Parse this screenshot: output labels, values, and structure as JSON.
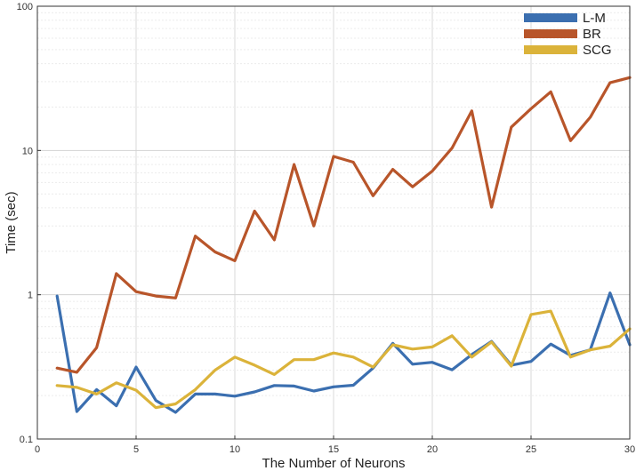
{
  "chart_data": {
    "type": "line",
    "title": "",
    "xlabel": "The Number of Neurons",
    "ylabel": "Time (sec)",
    "xlim": [
      0,
      30
    ],
    "ylim": [
      0.1,
      100
    ],
    "y_scale": "log",
    "grid": true,
    "legend_position": "top-right",
    "x_ticks": [
      0,
      5,
      10,
      15,
      20,
      25,
      30
    ],
    "x_tick_labels": [
      "0",
      "5",
      "10",
      "15",
      "20",
      "25",
      "30"
    ],
    "y_ticks": [
      0.1,
      1,
      10,
      100
    ],
    "y_tick_labels": [
      "0.1",
      "1",
      "10",
      "100"
    ],
    "x": [
      1,
      2,
      3,
      4,
      5,
      6,
      7,
      8,
      9,
      10,
      11,
      12,
      13,
      14,
      15,
      16,
      17,
      18,
      19,
      20,
      21,
      22,
      23,
      24,
      25,
      26,
      27,
      28,
      29,
      30
    ],
    "series": [
      {
        "name": "L-M",
        "color": "#3b6fb0",
        "values": [
          0.98,
          0.155,
          0.22,
          0.17,
          0.315,
          0.185,
          0.153,
          0.205,
          0.205,
          0.198,
          0.212,
          0.235,
          0.233,
          0.215,
          0.23,
          0.236,
          0.31,
          0.46,
          0.33,
          0.34,
          0.302,
          0.385,
          0.475,
          0.325,
          0.345,
          0.455,
          0.38,
          0.415,
          1.03,
          0.45
        ]
      },
      {
        "name": "BR",
        "color": "#b8552a",
        "values": [
          0.31,
          0.29,
          0.43,
          1.4,
          1.05,
          0.98,
          0.95,
          2.55,
          1.98,
          1.72,
          3.8,
          2.4,
          8.0,
          3.0,
          9.1,
          8.3,
          4.85,
          7.4,
          5.6,
          7.2,
          10.4,
          18.8,
          4.05,
          14.5,
          19.5,
          25.5,
          11.7,
          17.0,
          29.5,
          32.0
        ]
      },
      {
        "name": "SCG",
        "color": "#dbb33a",
        "values": [
          0.235,
          0.228,
          0.205,
          0.245,
          0.218,
          0.165,
          0.175,
          0.22,
          0.3,
          0.37,
          0.325,
          0.28,
          0.355,
          0.355,
          0.395,
          0.37,
          0.315,
          0.45,
          0.42,
          0.435,
          0.52,
          0.37,
          0.47,
          0.32,
          0.73,
          0.77,
          0.37,
          0.415,
          0.44,
          0.58
        ]
      }
    ]
  }
}
